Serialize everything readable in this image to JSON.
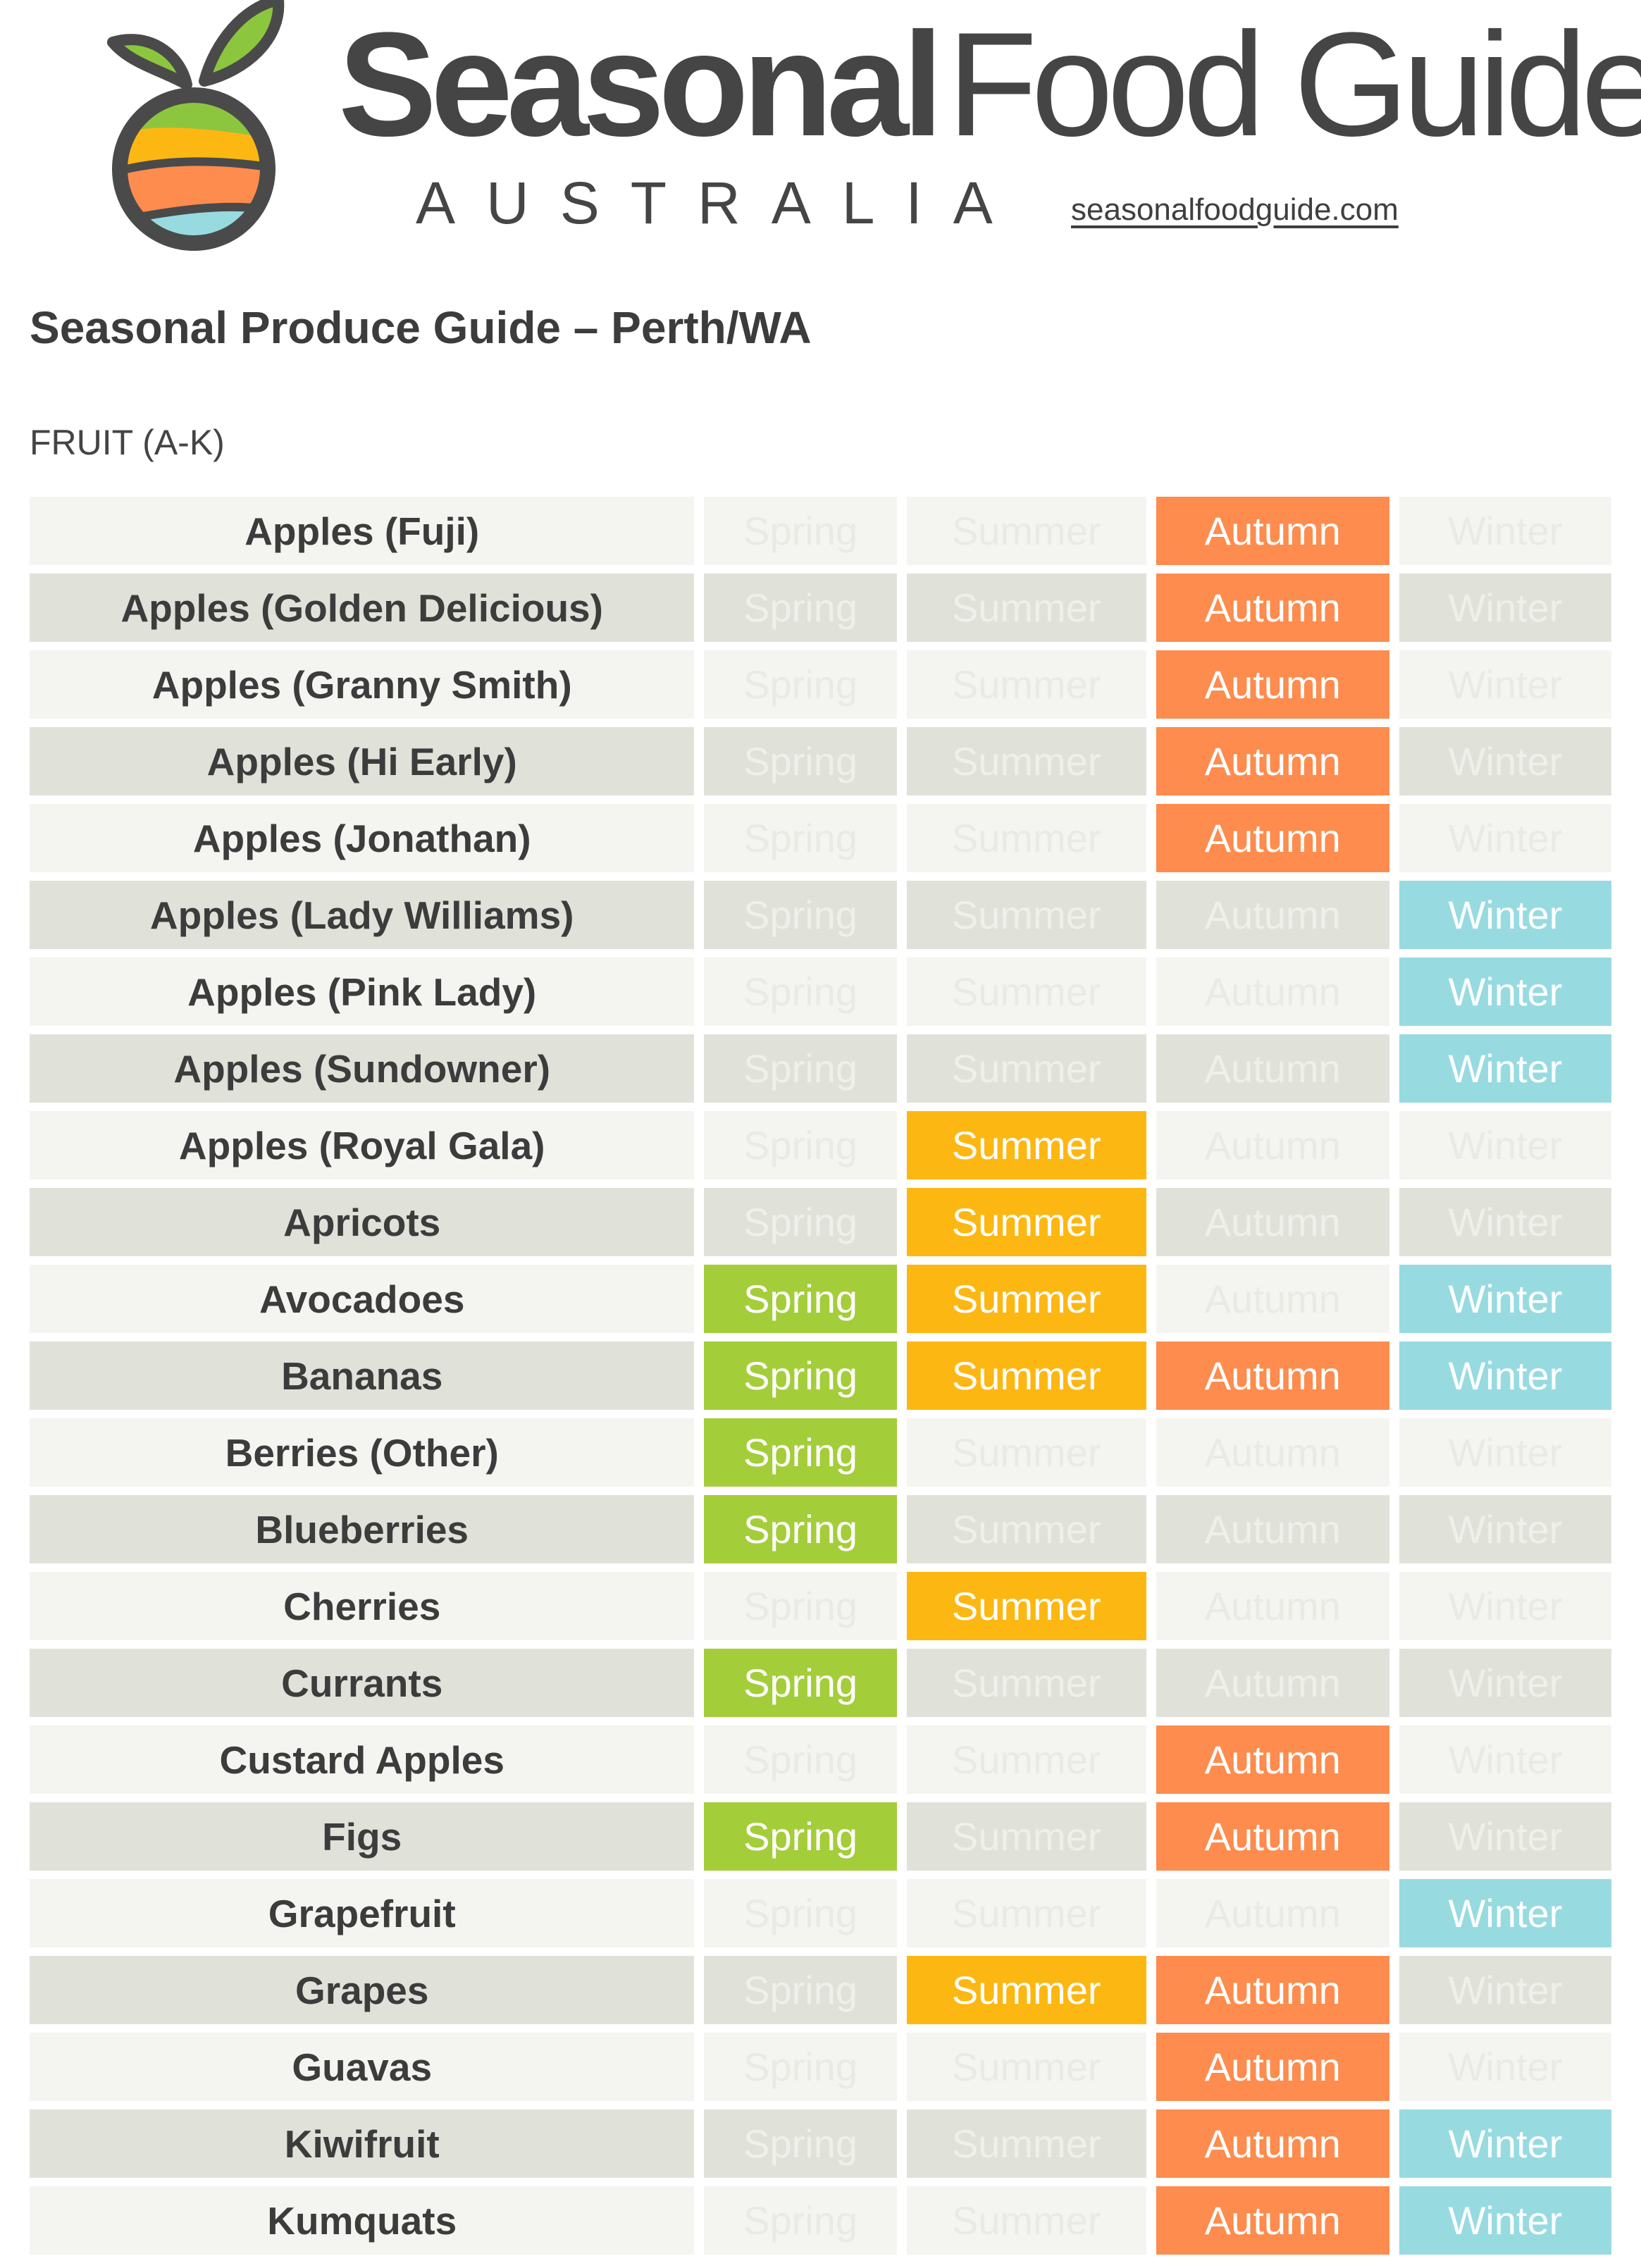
{
  "header": {
    "brand_bold": "Seasonal",
    "brand_light": "Food Guide",
    "country": "AUSTRALIA",
    "url": "seasonalfoodguide.com"
  },
  "title": "Seasonal Produce Guide – Perth/WA",
  "section": "FRUIT (A-K)",
  "seasons": {
    "spring": "Spring",
    "summer": "Summer",
    "autumn": "Autumn",
    "winter": "Winter"
  },
  "colors": {
    "spring": "#a4cd3a",
    "summer": "#fdb713",
    "autumn": "#fd8c4e",
    "winter": "#97dbe1"
  },
  "items": [
    {
      "name": "Apples (Fuji)",
      "spring": false,
      "summer": false,
      "autumn": true,
      "winter": false
    },
    {
      "name": "Apples (Golden Delicious)",
      "spring": false,
      "summer": false,
      "autumn": true,
      "winter": false
    },
    {
      "name": "Apples (Granny Smith)",
      "spring": false,
      "summer": false,
      "autumn": true,
      "winter": false
    },
    {
      "name": "Apples (Hi Early)",
      "spring": false,
      "summer": false,
      "autumn": true,
      "winter": false
    },
    {
      "name": "Apples (Jonathan)",
      "spring": false,
      "summer": false,
      "autumn": true,
      "winter": false
    },
    {
      "name": "Apples (Lady Williams)",
      "spring": false,
      "summer": false,
      "autumn": false,
      "winter": true
    },
    {
      "name": "Apples (Pink Lady)",
      "spring": false,
      "summer": false,
      "autumn": false,
      "winter": true
    },
    {
      "name": "Apples (Sundowner)",
      "spring": false,
      "summer": false,
      "autumn": false,
      "winter": true
    },
    {
      "name": "Apples (Royal Gala)",
      "spring": false,
      "summer": true,
      "autumn": false,
      "winter": false
    },
    {
      "name": "Apricots",
      "spring": false,
      "summer": true,
      "autumn": false,
      "winter": false
    },
    {
      "name": "Avocadoes",
      "spring": true,
      "summer": true,
      "autumn": false,
      "winter": true
    },
    {
      "name": "Bananas",
      "spring": true,
      "summer": true,
      "autumn": true,
      "winter": true
    },
    {
      "name": "Berries (Other)",
      "spring": true,
      "summer": false,
      "autumn": false,
      "winter": false
    },
    {
      "name": "Blueberries",
      "spring": true,
      "summer": false,
      "autumn": false,
      "winter": false
    },
    {
      "name": "Cherries",
      "spring": false,
      "summer": true,
      "autumn": false,
      "winter": false
    },
    {
      "name": "Currants",
      "spring": true,
      "summer": false,
      "autumn": false,
      "winter": false
    },
    {
      "name": "Custard Apples",
      "spring": false,
      "summer": false,
      "autumn": true,
      "winter": false
    },
    {
      "name": "Figs",
      "spring": true,
      "summer": false,
      "autumn": true,
      "winter": false
    },
    {
      "name": "Grapefruit",
      "spring": false,
      "summer": false,
      "autumn": false,
      "winter": true
    },
    {
      "name": "Grapes",
      "spring": false,
      "summer": true,
      "autumn": true,
      "winter": false
    },
    {
      "name": "Guavas",
      "spring": false,
      "summer": false,
      "autumn": true,
      "winter": false
    },
    {
      "name": "Kiwifruit",
      "spring": false,
      "summer": false,
      "autumn": true,
      "winter": true
    },
    {
      "name": "Kumquats",
      "spring": false,
      "summer": false,
      "autumn": true,
      "winter": true
    }
  ]
}
